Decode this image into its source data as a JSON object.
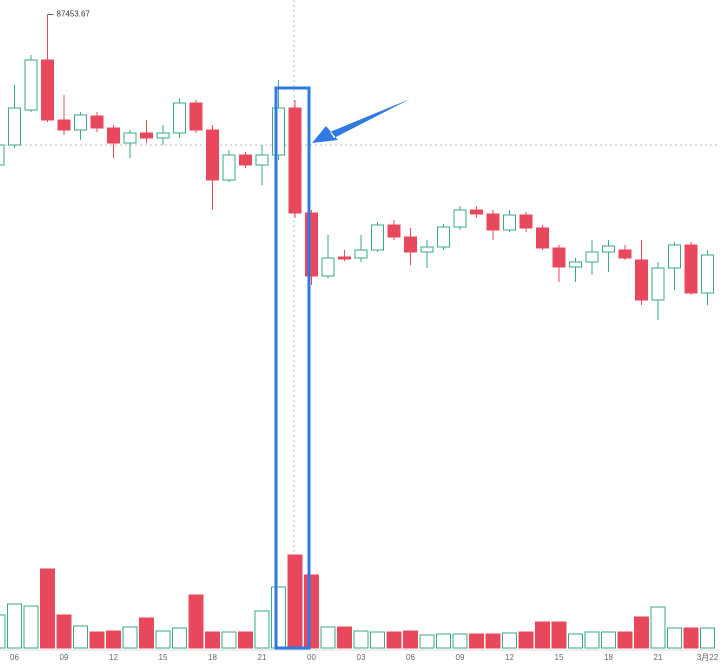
{
  "chart_data": {
    "type": "candlestick",
    "annotation": "87453.67",
    "categories": [
      null,
      "06",
      null,
      null,
      "09",
      null,
      null,
      "12",
      null,
      null,
      "15",
      null,
      null,
      "18",
      null,
      null,
      "21",
      null,
      null,
      "00",
      null,
      null,
      "03",
      null,
      null,
      "06",
      null,
      null,
      "09",
      null,
      null,
      "12",
      null,
      null,
      "15",
      null,
      null,
      "18",
      null,
      null,
      "21",
      null,
      null,
      "3月22"
    ],
    "open": [
      85950,
      86150,
      86500,
      87000,
      86400,
      86300,
      86440,
      86320,
      86170,
      86270,
      86220,
      86270,
      86570,
      86300,
      85800,
      86050,
      85950,
      86050,
      86520,
      85470,
      84840,
      85030,
      85020,
      85100,
      85350,
      85230,
      85080,
      85130,
      85330,
      85500,
      85460,
      85300,
      85450,
      85320,
      85120,
      84930,
      84980,
      85080,
      85100,
      85000,
      84600,
      84920,
      85150,
      84670
    ],
    "close": [
      86150,
      86520,
      87000,
      86400,
      86300,
      86450,
      86320,
      86170,
      86270,
      86220,
      86270,
      86570,
      86300,
      85800,
      86050,
      85950,
      86050,
      86520,
      85470,
      84840,
      85020,
      85010,
      85100,
      85350,
      85230,
      85080,
      85130,
      85330,
      85500,
      85460,
      85300,
      85450,
      85320,
      85120,
      84930,
      84980,
      85080,
      85140,
      85020,
      84600,
      84920,
      85150,
      84670,
      85050
    ],
    "high": [
      86200,
      86750,
      87050,
      87453.67,
      86650,
      86480,
      86480,
      86350,
      86300,
      86400,
      86350,
      86620,
      86600,
      86350,
      86100,
      86080,
      86150,
      86800,
      86600,
      85500,
      85250,
      85100,
      85250,
      85380,
      85400,
      85320,
      85200,
      85360,
      85540,
      85540,
      85500,
      85500,
      85480,
      85350,
      85150,
      85020,
      85200,
      85200,
      85150,
      85200,
      84980,
      85180,
      85180,
      85100
    ],
    "low": [
      85920,
      86120,
      86480,
      86380,
      86250,
      86200,
      86280,
      86020,
      86020,
      86170,
      86150,
      86220,
      86270,
      85500,
      85780,
      85920,
      85750,
      86000,
      85420,
      84750,
      84820,
      84990,
      84980,
      85080,
      85200,
      84950,
      84920,
      85100,
      85300,
      85420,
      85200,
      85280,
      85280,
      85100,
      84780,
      84780,
      84850,
      84880,
      85000,
      84550,
      84400,
      84700,
      84650,
      84550
    ],
    "volume": [
      33,
      44,
      42,
      79,
      33,
      22,
      16,
      17,
      21,
      30,
      17,
      20,
      53,
      16,
      16,
      16,
      37,
      61,
      93,
      73,
      21,
      21,
      17,
      16,
      16,
      17,
      13,
      14,
      14,
      14,
      14,
      15,
      16,
      26,
      26,
      14,
      16,
      16,
      16,
      31,
      41,
      20,
      20,
      20
    ],
    "ylim": [
      82000,
      87600
    ],
    "vlim": [
      0,
      100
    ],
    "up_color": "#3aa88a",
    "down_color": "#e8485c"
  }
}
